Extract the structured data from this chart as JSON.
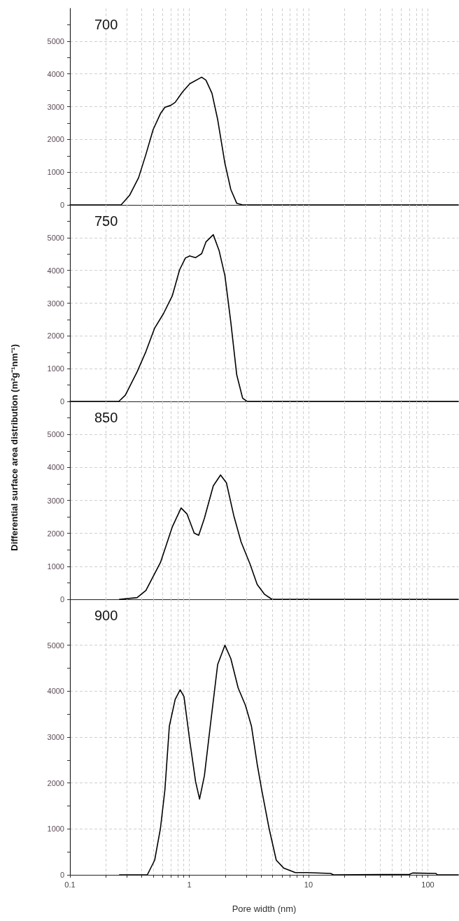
{
  "chart_data": [
    {
      "type": "line",
      "title": "700",
      "log": "x",
      "grid": true,
      "marker": "none",
      "line_style": "solid",
      "tick_labels": "y",
      "xlim": [
        0.1,
        180
      ],
      "ylim": [
        0,
        6000
      ],
      "xticks": [
        0.1,
        {
          "value": 0.2,
          "label": null
        },
        {
          "value": 0.3,
          "label": null
        },
        {
          "value": 0.4,
          "label": null
        },
        {
          "value": 0.5,
          "label": null
        },
        {
          "value": 0.6,
          "label": null
        },
        {
          "value": 0.7,
          "label": null
        },
        {
          "value": 0.8,
          "label": null
        },
        {
          "value": 0.9,
          "label": null
        },
        1,
        {
          "value": 2,
          "label": null
        },
        {
          "value": 3,
          "label": null
        },
        {
          "value": 4,
          "label": null
        },
        {
          "value": 5,
          "label": null
        },
        {
          "value": 6,
          "label": null
        },
        {
          "value": 7,
          "label": null
        },
        {
          "value": 8,
          "label": null
        },
        {
          "value": 9,
          "label": null
        },
        10,
        {
          "value": 20,
          "label": null
        },
        {
          "value": 30,
          "label": null
        },
        {
          "value": 40,
          "label": null
        },
        {
          "value": 50,
          "label": null
        },
        {
          "value": 60,
          "label": null
        },
        {
          "value": 70,
          "label": null
        },
        {
          "value": 80,
          "label": null
        },
        {
          "value": 90,
          "label": null
        },
        100
      ],
      "yticks": [
        0,
        {
          "value": 500,
          "label": null
        },
        1000,
        {
          "value": 1500,
          "label": null
        },
        2000,
        {
          "value": 2500,
          "label": null
        },
        3000,
        {
          "value": 3500,
          "label": null
        },
        4000,
        {
          "value": 4500,
          "label": null
        },
        5000,
        {
          "value": 5500,
          "label": null
        }
      ],
      "series": [
        {
          "color": "#000000",
          "x": [
            0.1,
            0.268,
            0.284,
            0.317,
            0.376,
            0.433,
            0.498,
            0.574,
            0.625,
            0.7,
            0.762,
            0.878,
            1.01,
            1.27,
            1.38,
            1.55,
            1.73,
            1.99,
            2.23,
            2.5,
            2.8,
            180
          ],
          "values": [
            0,
            0,
            100,
            300,
            830,
            1540,
            2300,
            2790,
            2980,
            3040,
            3130,
            3450,
            3700,
            3900,
            3810,
            3410,
            2610,
            1270,
            470,
            50,
            0,
            0
          ]
        }
      ]
    },
    {
      "type": "line",
      "title": "750",
      "log": "x",
      "grid": true,
      "marker": "none",
      "line_style": "solid",
      "tick_labels": "y",
      "xlim": [
        0.1,
        180
      ],
      "ylim": [
        0,
        6000
      ],
      "xticks": [
        0.1,
        {
          "value": 0.2,
          "label": null
        },
        {
          "value": 0.3,
          "label": null
        },
        {
          "value": 0.4,
          "label": null
        },
        {
          "value": 0.5,
          "label": null
        },
        {
          "value": 0.6,
          "label": null
        },
        {
          "value": 0.7,
          "label": null
        },
        {
          "value": 0.8,
          "label": null
        },
        {
          "value": 0.9,
          "label": null
        },
        1,
        {
          "value": 2,
          "label": null
        },
        {
          "value": 3,
          "label": null
        },
        {
          "value": 4,
          "label": null
        },
        {
          "value": 5,
          "label": null
        },
        {
          "value": 6,
          "label": null
        },
        {
          "value": 7,
          "label": null
        },
        {
          "value": 8,
          "label": null
        },
        {
          "value": 9,
          "label": null
        },
        10,
        {
          "value": 20,
          "label": null
        },
        {
          "value": 30,
          "label": null
        },
        {
          "value": 40,
          "label": null
        },
        {
          "value": 50,
          "label": null
        },
        {
          "value": 60,
          "label": null
        },
        {
          "value": 70,
          "label": null
        },
        {
          "value": 80,
          "label": null
        },
        {
          "value": 90,
          "label": null
        },
        100
      ],
      "yticks": [
        0,
        {
          "value": 500,
          "label": null
        },
        1000,
        {
          "value": 1500,
          "label": null
        },
        2000,
        {
          "value": 2500,
          "label": null
        },
        3000,
        {
          "value": 3500,
          "label": null
        },
        4000,
        {
          "value": 4500,
          "label": null
        },
        5000,
        {
          "value": 5500,
          "label": null
        }
      ],
      "series": [
        {
          "color": "#000000",
          "x": [
            0.1,
            0.257,
            0.291,
            0.365,
            0.433,
            0.513,
            0.608,
            0.72,
            0.83,
            0.929,
            1.01,
            1.13,
            1.27,
            1.38,
            1.59,
            1.78,
            1.99,
            2.23,
            2.5,
            2.8,
            3.05,
            180
          ],
          "values": [
            0,
            0,
            190,
            900,
            1520,
            2240,
            2680,
            3220,
            4020,
            4380,
            4440,
            4390,
            4510,
            4870,
            5090,
            4600,
            3840,
            2420,
            810,
            100,
            0,
            0
          ]
        }
      ]
    },
    {
      "type": "line",
      "title": "850",
      "ylabel": "Differential surface area distribution (m²g⁻¹nm⁻¹)",
      "log": "x",
      "grid": true,
      "marker": "none",
      "line_style": "solid",
      "tick_labels": "y",
      "xlim": [
        0.1,
        180
      ],
      "ylim": [
        0,
        6000
      ],
      "xticks": [
        0.1,
        {
          "value": 0.2,
          "label": null
        },
        {
          "value": 0.3,
          "label": null
        },
        {
          "value": 0.4,
          "label": null
        },
        {
          "value": 0.5,
          "label": null
        },
        {
          "value": 0.6,
          "label": null
        },
        {
          "value": 0.7,
          "label": null
        },
        {
          "value": 0.8,
          "label": null
        },
        {
          "value": 0.9,
          "label": null
        },
        1,
        {
          "value": 2,
          "label": null
        },
        {
          "value": 3,
          "label": null
        },
        {
          "value": 4,
          "label": null
        },
        {
          "value": 5,
          "label": null
        },
        {
          "value": 6,
          "label": null
        },
        {
          "value": 7,
          "label": null
        },
        {
          "value": 8,
          "label": null
        },
        {
          "value": 9,
          "label": null
        },
        10,
        {
          "value": 20,
          "label": null
        },
        {
          "value": 30,
          "label": null
        },
        {
          "value": 40,
          "label": null
        },
        {
          "value": 50,
          "label": null
        },
        {
          "value": 60,
          "label": null
        },
        {
          "value": 70,
          "label": null
        },
        {
          "value": 80,
          "label": null
        },
        {
          "value": 90,
          "label": null
        },
        100
      ],
      "yticks": [
        0,
        {
          "value": 500,
          "label": null
        },
        1000,
        {
          "value": 1500,
          "label": null
        },
        2000,
        {
          "value": 2500,
          "label": null
        },
        3000,
        {
          "value": 3500,
          "label": null
        },
        4000,
        {
          "value": 4500,
          "label": null
        },
        5000,
        {
          "value": 5500,
          "label": null
        }
      ],
      "series": [
        {
          "color": "#000000",
          "x": [
            0.26,
            0.365,
            0.433,
            0.574,
            0.72,
            0.854,
            0.956,
            1.1,
            1.2,
            1.34,
            1.59,
            1.83,
            2.05,
            2.36,
            2.72,
            3.23,
            3.71,
            4.28,
            4.93,
            180
          ],
          "values": [
            0,
            50,
            270,
            1120,
            2190,
            2770,
            2590,
            2010,
            1940,
            2460,
            3440,
            3770,
            3530,
            2540,
            1740,
            1070,
            450,
            150,
            0,
            0
          ]
        }
      ]
    },
    {
      "type": "line",
      "title": "900",
      "xlabel": "Pore width (nm)",
      "log": "x",
      "grid": true,
      "marker": "none",
      "line_style": "solid",
      "xlim": [
        0.1,
        180
      ],
      "ylim": [
        0,
        6000
      ],
      "xticks": [
        0.1,
        {
          "value": 0.2,
          "label": null
        },
        {
          "value": 0.3,
          "label": null
        },
        {
          "value": 0.4,
          "label": null
        },
        {
          "value": 0.5,
          "label": null
        },
        {
          "value": 0.6,
          "label": null
        },
        {
          "value": 0.7,
          "label": null
        },
        {
          "value": 0.8,
          "label": null
        },
        {
          "value": 0.9,
          "label": null
        },
        1,
        {
          "value": 2,
          "label": null
        },
        {
          "value": 3,
          "label": null
        },
        {
          "value": 4,
          "label": null
        },
        {
          "value": 5,
          "label": null
        },
        {
          "value": 6,
          "label": null
        },
        {
          "value": 7,
          "label": null
        },
        {
          "value": 8,
          "label": null
        },
        {
          "value": 9,
          "label": null
        },
        10,
        {
          "value": 20,
          "label": null
        },
        {
          "value": 30,
          "label": null
        },
        {
          "value": 40,
          "label": null
        },
        {
          "value": 50,
          "label": null
        },
        {
          "value": 60,
          "label": null
        },
        {
          "value": 70,
          "label": null
        },
        {
          "value": 80,
          "label": null
        },
        {
          "value": 90,
          "label": null
        },
        100
      ],
      "yticks": [
        0,
        {
          "value": 500,
          "label": null
        },
        1000,
        {
          "value": 1500,
          "label": null
        },
        2000,
        {
          "value": 2500,
          "label": null
        },
        3000,
        {
          "value": 3500,
          "label": null
        },
        4000,
        {
          "value": 4500,
          "label": null
        },
        5000,
        {
          "value": 5500,
          "label": null
        }
      ],
      "series": [
        {
          "color": "#000000",
          "x": [
            0.26,
            0.445,
            0.513,
            0.574,
            0.625,
            0.681,
            0.762,
            0.839,
            0.903,
            1.01,
            1.13,
            1.22,
            1.34,
            1.5,
            1.73,
            1.99,
            2.23,
            2.57,
            2.96,
            3.32,
            3.71,
            4.05,
            4.66,
            5.36,
            6.17,
            7.74,
            9.7,
            15.3,
            16.2,
            70.2,
            74.5,
            117,
            120,
            180
          ],
          "values": [
            0,
            0,
            320,
            1020,
            1850,
            3240,
            3820,
            4030,
            3880,
            2920,
            2030,
            1650,
            2160,
            3240,
            4580,
            5000,
            4710,
            4070,
            3690,
            3240,
            2410,
            1850,
            1020,
            320,
            150,
            50,
            50,
            30,
            0,
            10,
            40,
            30,
            0,
            0
          ]
        }
      ]
    }
  ]
}
